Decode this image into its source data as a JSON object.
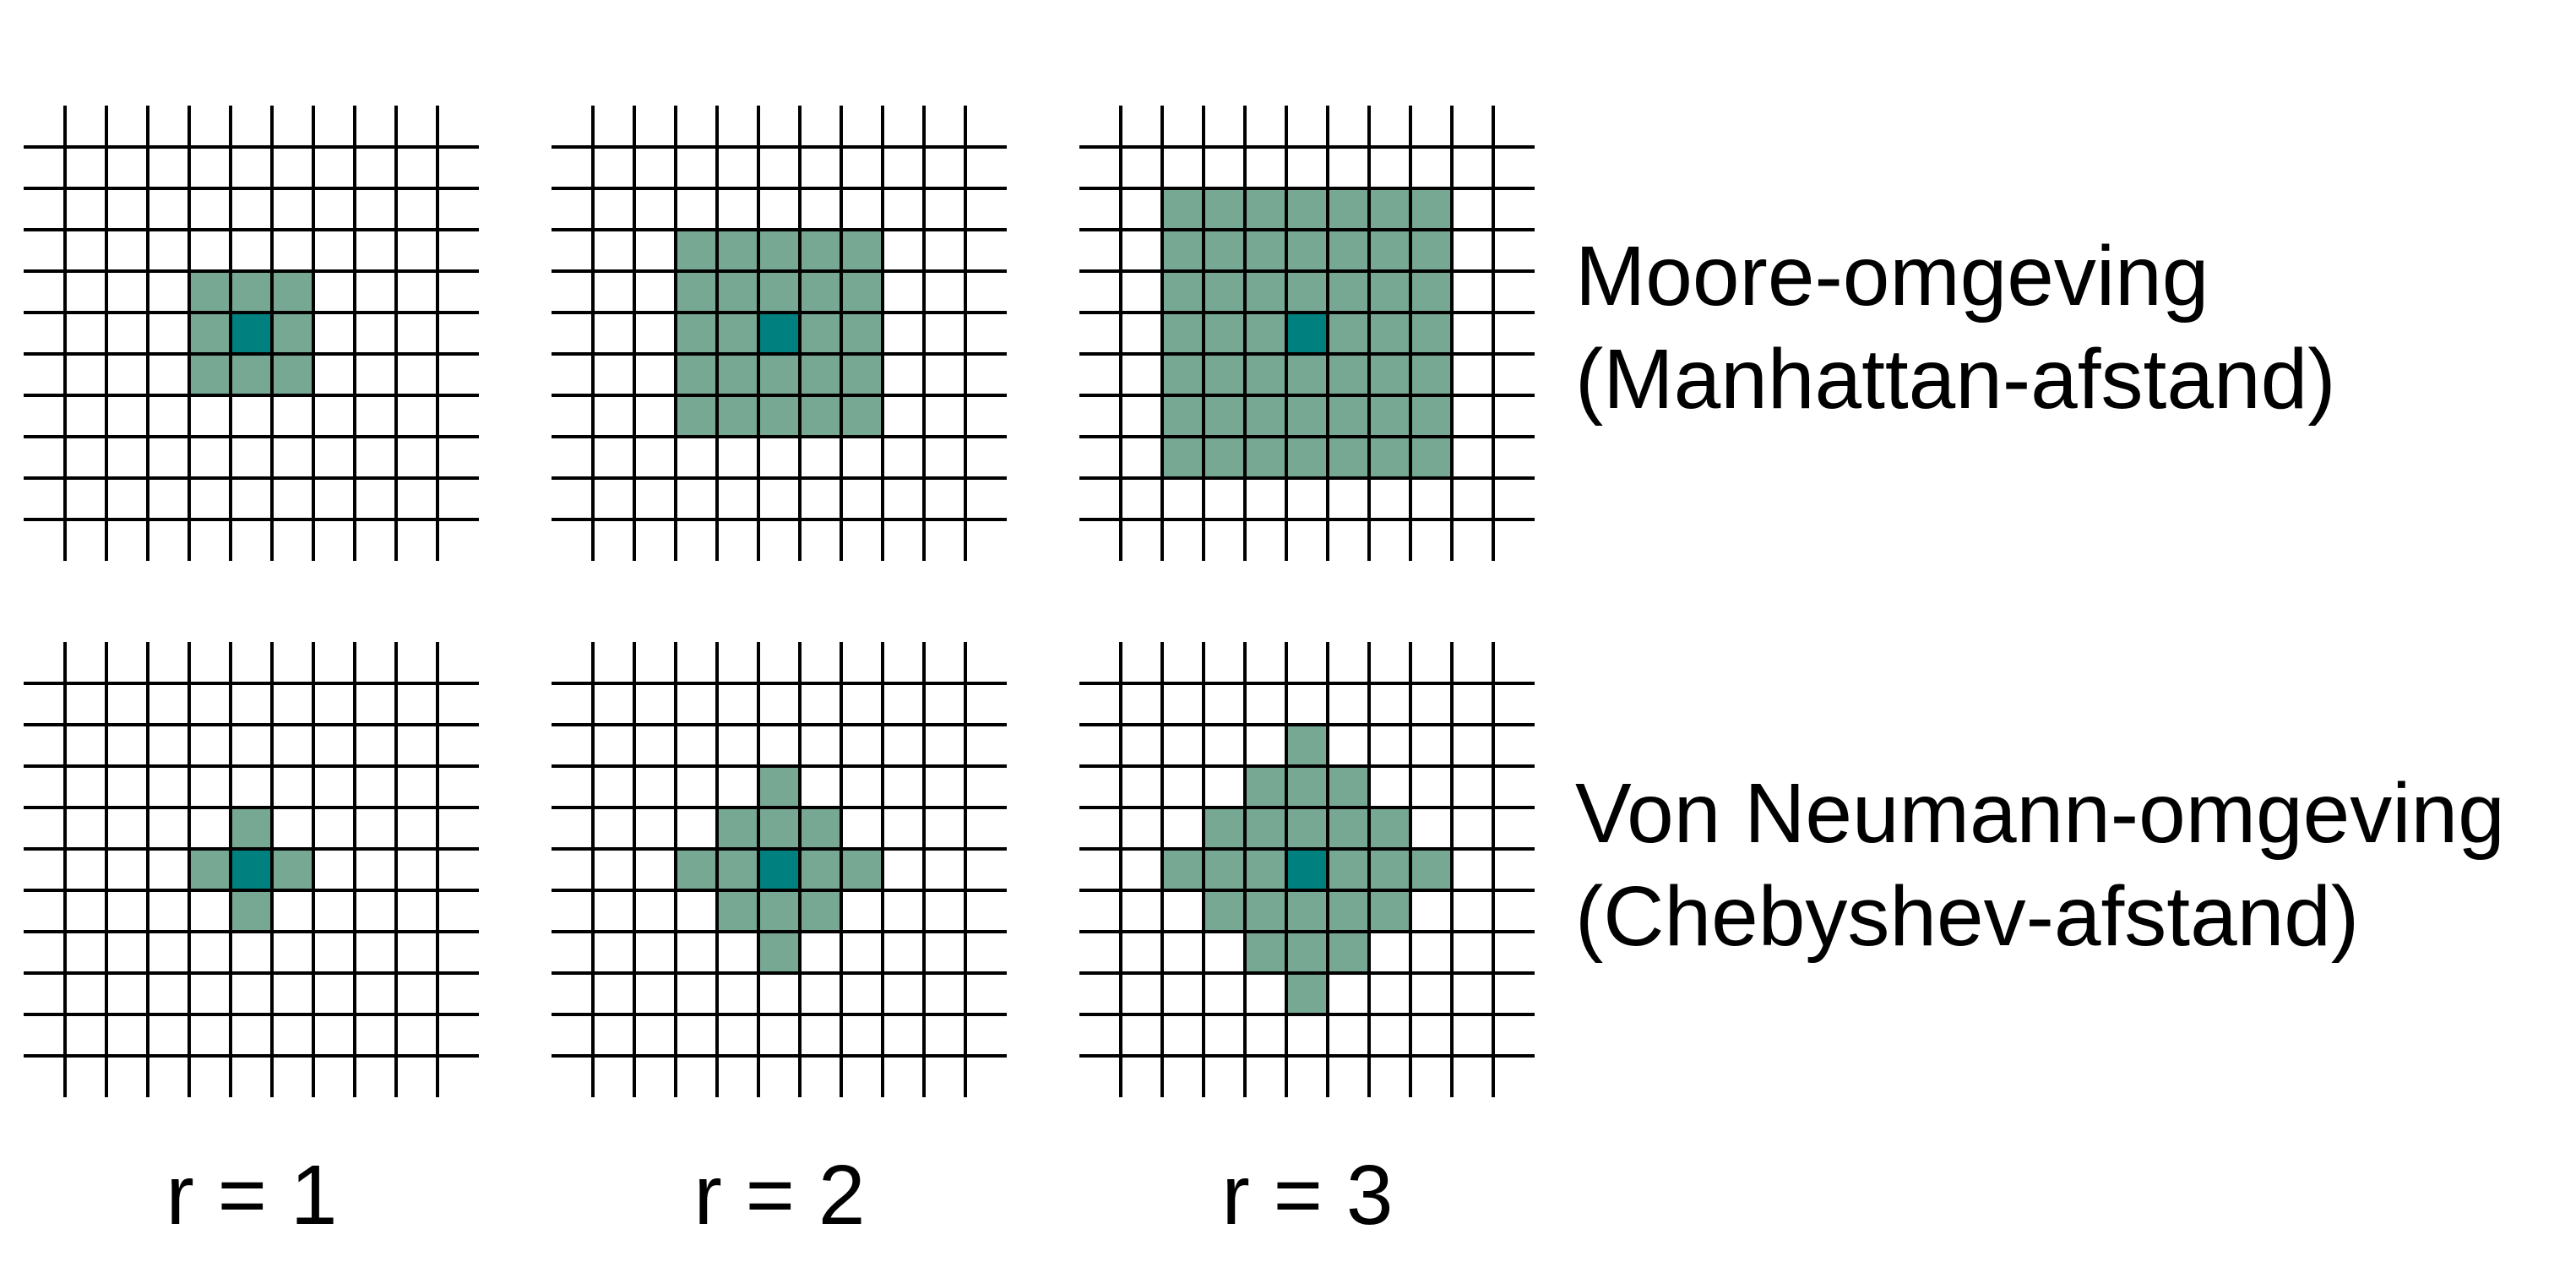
{
  "colors": {
    "neighbor_fill": "#76a894",
    "center_fill": "#00807f",
    "grid_line": "#000000",
    "background": "#ffffff"
  },
  "rows": [
    {
      "key": "moore",
      "label_line1": "Moore-omgeving",
      "label_line2": "(Manhattan-afstand)",
      "neighborhood_shape": "square"
    },
    {
      "key": "von-neumann",
      "label_line1": "Von Neumann-omgeving",
      "label_line2": "(Chebyshev-afstand)",
      "neighborhood_shape": "diamond"
    }
  ],
  "columns": [
    {
      "radius": 1,
      "label": "r = 1"
    },
    {
      "radius": 2,
      "label": "r = 2"
    },
    {
      "radius": 3,
      "label": "r = 3"
    }
  ],
  "grid": {
    "cells_per_side": 10,
    "center_cell": [
      5,
      5
    ]
  }
}
